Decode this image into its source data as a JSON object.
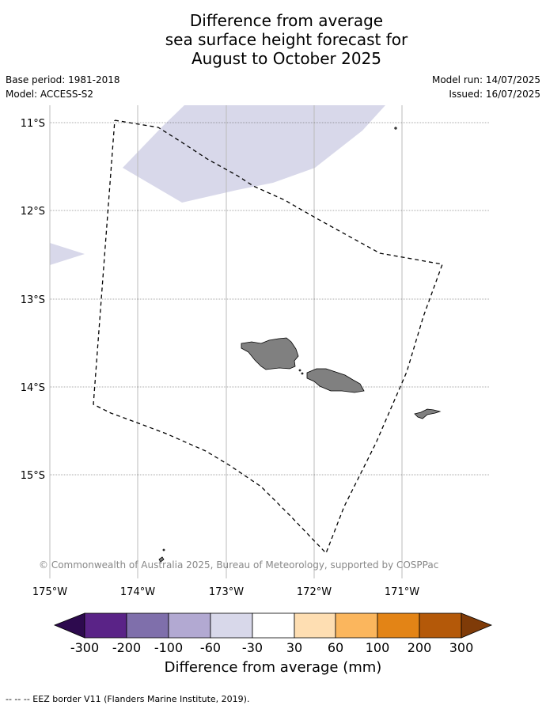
{
  "title": {
    "line1": "Difference from average",
    "line2": "sea surface height forecast for",
    "line3": "August to October 2025"
  },
  "meta": {
    "base_period": "Base period: 1981-2018",
    "model": "Model: ACCESS-S2",
    "model_run": "Model run: 14/07/2025",
    "issued": "Issued: 16/07/2025"
  },
  "map": {
    "longitude_ticks": [
      "175°W",
      "174°W",
      "173°W",
      "172°W",
      "171°W"
    ],
    "latitude_ticks": [
      "11°S",
      "12°S",
      "13°S",
      "14°S",
      "15°S"
    ],
    "copyright": "© Commonwealth of Australia 2025, Bureau of Meteorology, supported by COSPPac",
    "colors": {
      "land": "#808080",
      "anomaly_minus_30_to_60": "#d8d8ea",
      "eez_line": "#000000"
    }
  },
  "colorbar": {
    "title": "Difference from average (mm)",
    "labels": [
      "-300",
      "-200",
      "-100",
      "-60",
      "-30",
      "30",
      "60",
      "100",
      "200",
      "300"
    ],
    "colors": [
      "#2d0a4e",
      "#5a2387",
      "#7f6fab",
      "#b2a9d2",
      "#d8d8ea",
      "#ffffff",
      "#fedeb2",
      "#fbb65d",
      "#e38416",
      "#b45909",
      "#7f3b08"
    ]
  },
  "footer": {
    "legend_text": "--  --  -- EEZ border V11 (Flanders Marine Institute, 2019)."
  }
}
